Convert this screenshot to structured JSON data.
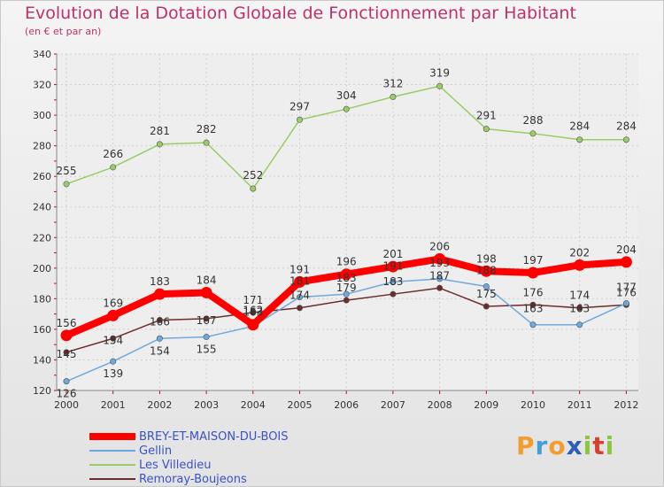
{
  "title": "Evolution de la Dotation Globale de Fonctionnement par Habitant",
  "subtitle": "(en € et par an)",
  "chart_data": {
    "type": "line",
    "title": "Evolution de la Dotation Globale de Fonctionnement par Habitant",
    "ylabel": "(en € et par an)",
    "xlabel": "",
    "ylim": [
      120,
      340
    ],
    "yticks": [
      120,
      140,
      160,
      180,
      200,
      220,
      240,
      260,
      280,
      300,
      320,
      340
    ],
    "grid": true,
    "x": [
      "2000",
      "2001",
      "2002",
      "2003",
      "2004",
      "2005",
      "2006",
      "2007",
      "2008",
      "2009",
      "2010",
      "2011",
      "2012"
    ],
    "series": [
      {
        "name": "BREY-ET-MAISON-DU-BOIS",
        "color": "#ff0000",
        "values": [
          156,
          169,
          183,
          184,
          163,
          191,
          196,
          201,
          206,
          198,
          197,
          202,
          204
        ]
      },
      {
        "name": "Gellin",
        "color": "#6fa8dc",
        "values": [
          126,
          139,
          154,
          155,
          162,
          181,
          183,
          191,
          193,
          188,
          163,
          163,
          177
        ]
      },
      {
        "name": "Les Villedieu",
        "color": "#99cc66",
        "values": [
          255,
          266,
          281,
          282,
          252,
          297,
          304,
          312,
          319,
          291,
          288,
          284,
          284
        ]
      },
      {
        "name": "Remoray-Boujeons",
        "color": "#6b2c2c",
        "values": [
          145,
          154,
          166,
          167,
          171,
          174,
          179,
          183,
          187,
          175,
          176,
          174,
          176
        ]
      }
    ]
  },
  "legend": [
    {
      "label": "BREY-ET-MAISON-DU-BOIS"
    },
    {
      "label": "Gellin"
    },
    {
      "label": "Les Villedieu"
    },
    {
      "label": "Remoray-Boujeons"
    }
  ],
  "logo": {
    "text": "Proxiti"
  }
}
